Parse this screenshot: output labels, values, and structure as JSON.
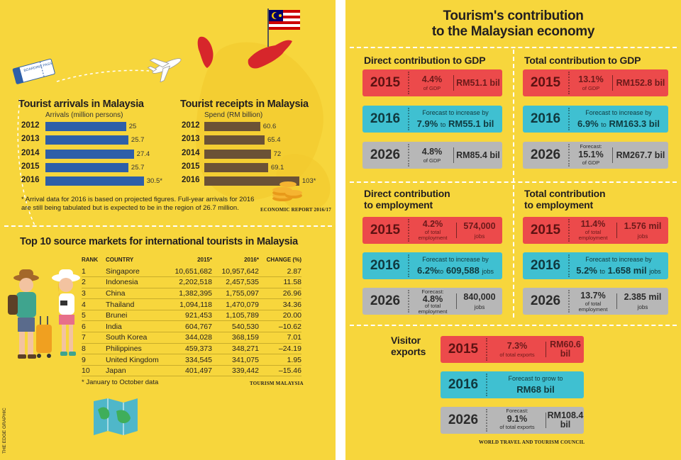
{
  "side_credit": "THE EDGE GRAPHIC",
  "arrivals": {
    "title": "Tourist arrivals in Malaysia",
    "subtitle": "Arrivals (million persons)",
    "items": [
      {
        "year": "2012",
        "value": 25,
        "label": "25"
      },
      {
        "year": "2013",
        "value": 25.7,
        "label": "25.7"
      },
      {
        "year": "2014",
        "value": 27.4,
        "label": "27.4"
      },
      {
        "year": "2015",
        "value": 25.7,
        "label": "25.7"
      },
      {
        "year": "2016",
        "value": 30.5,
        "label": "30.5*"
      }
    ],
    "color": "#2e5fa8"
  },
  "receipts": {
    "title": "Tourist receipts in Malaysia",
    "subtitle": "Spend (RM billion)",
    "items": [
      {
        "year": "2012",
        "value": 60.6,
        "label": "60.6"
      },
      {
        "year": "2013",
        "value": 65.4,
        "label": "65.4"
      },
      {
        "year": "2014",
        "value": 72,
        "label": "72"
      },
      {
        "year": "2015",
        "value": 69.1,
        "label": "69.1"
      },
      {
        "year": "2016",
        "value": 103,
        "label": "103*"
      }
    ],
    "color": "#6b5236"
  },
  "arrivals_note": "* Arrival data for 2016 is based on projected figures. Full-year arrivals for 2016 are still being tabulated but is expected to be in the region of 26.7 million.",
  "receipts_source": "ECONOMIC REPORT 2016/17",
  "source_markets": {
    "title": "Top 10 source markets for international tourists in Malaysia",
    "headers": {
      "rank": "RANK",
      "country": "COUNTRY",
      "y2015": "2015*",
      "y2016": "2016*",
      "change": "CHANGE (%)"
    },
    "rows": [
      {
        "rank": "1",
        "country": "Singapore",
        "y2015": "10,651,682",
        "y2016": "10,957,642",
        "change": "2.87"
      },
      {
        "rank": "2",
        "country": "Indonesia",
        "y2015": "2,202,518",
        "y2016": "2,457,535",
        "change": "11.58"
      },
      {
        "rank": "3",
        "country": "China",
        "y2015": "1,382,395",
        "y2016": "1,755,097",
        "change": "26.96"
      },
      {
        "rank": "4",
        "country": "Thailand",
        "y2015": "1,094,118",
        "y2016": "1,470,079",
        "change": "34.36"
      },
      {
        "rank": "5",
        "country": "Brunei",
        "y2015": "921,453",
        "y2016": "1,105,789",
        "change": "20.00"
      },
      {
        "rank": "6",
        "country": "India",
        "y2015": "604,767",
        "y2016": "540,530",
        "change": "–10.62"
      },
      {
        "rank": "7",
        "country": "South Korea",
        "y2015": "344,028",
        "y2016": "368,159",
        "change": "7.01"
      },
      {
        "rank": "8",
        "country": "Philippines",
        "y2015": "459,373",
        "y2016": "348,271",
        "change": "–24.19"
      },
      {
        "rank": "9",
        "country": "United Kingdom",
        "y2015": "334,545",
        "y2016": "341,075",
        "change": "1.95"
      },
      {
        "rank": "10",
        "country": "Japan",
        "y2015": "401,497",
        "y2016": "339,442",
        "change": "–15.46"
      }
    ],
    "footnote": "* January to October data",
    "source": "TOURISM MALAYSIA"
  },
  "right": {
    "title_line1": "Tourism's contribution",
    "title_line2": "to the Malaysian economy",
    "source": "WORLD TRAVEL AND TOURISM COUNCIL",
    "direct_gdp": {
      "title": "Direct contribution to GDP",
      "t2015": {
        "year": "2015",
        "pct": "4.4%",
        "pct_label": "of GDP",
        "amount": "RM51.1 bil"
      },
      "t2016": {
        "year": "2016",
        "forecast": "Forecast to increase by",
        "pct": "7.9%",
        "to": "to",
        "amount": "RM55.1 bil"
      },
      "t2026": {
        "year": "2026",
        "pct": "4.8%",
        "pct_label": "of GDP",
        "amount": "RM85.4 bil"
      }
    },
    "total_gdp": {
      "title": "Total contribution to GDP",
      "t2015": {
        "year": "2015",
        "pct": "13.1%",
        "pct_label": "of GDP",
        "amount": "RM152.8 bil"
      },
      "t2016": {
        "year": "2016",
        "forecast": "Forecast to increase by",
        "pct": "6.9%",
        "to": "to",
        "amount": "RM163.3 bil"
      },
      "t2026": {
        "year": "2026",
        "forecast": "Forecast:",
        "pct": "15.1%",
        "pct_label": "of GDP",
        "amount": "RM267.7 bil"
      }
    },
    "direct_emp": {
      "title_line1": "Direct contribution",
      "title_line2": "to employment",
      "t2015": {
        "year": "2015",
        "pct": "4.2%",
        "pct_label1": "of total",
        "pct_label2": "employment",
        "amount": "574,000",
        "amount_label": "jobs"
      },
      "t2016": {
        "year": "2016",
        "forecast": "Forecast to increase by",
        "pct": "6.2%",
        "to": "to",
        "amount": "609,588",
        "amount_label": "jobs"
      },
      "t2026": {
        "year": "2026",
        "forecast": "Forecast:",
        "pct": "4.8%",
        "pct_label1": "of total",
        "pct_label2": "employment",
        "amount": "840,000",
        "amount_label": "jobs"
      }
    },
    "total_emp": {
      "title_line1": "Total contribution",
      "title_line2": "to employment",
      "t2015": {
        "year": "2015",
        "pct": "11.4%",
        "pct_label1": "of total",
        "pct_label2": "employment",
        "amount": "1.576 mil",
        "amount_label": "jobs"
      },
      "t2016": {
        "year": "2016",
        "forecast": "Forecast to increase by",
        "pct": "5.2%",
        "to": "to",
        "amount": "1.658 mil",
        "amount_label": "jobs"
      },
      "t2026": {
        "year": "2026",
        "pct": "13.7%",
        "pct_label1": "of total",
        "pct_label2": "employment",
        "amount": "2.385 mil",
        "amount_label": "jobs"
      }
    },
    "visitor": {
      "title_line1": "Visitor",
      "title_line2": "exports",
      "t2015": {
        "year": "2015",
        "pct": "7.3%",
        "pct_label": "of total exports",
        "amount1": "RM60.6",
        "amount2": "bil"
      },
      "t2016": {
        "year": "2016",
        "forecast": "Forecast to grow to",
        "amount": "RM68 bil"
      },
      "t2026": {
        "year": "2026",
        "forecast": "Forecast:",
        "pct": "9.1%",
        "pct_label": "of total exports",
        "amount1": "RM108.4",
        "amount2": "bil"
      }
    }
  },
  "ticket_label": "BOARDING PASS",
  "colors": {
    "background": "#f7d63c",
    "red_ticket": "#ec4a4b",
    "cyan_ticket": "#3fc0d1",
    "grey_ticket": "#b7b7b7",
    "malaysia_map": "#d7262b"
  }
}
